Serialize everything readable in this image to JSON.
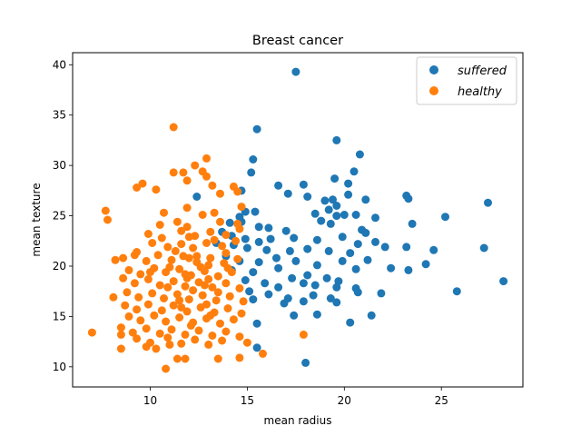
{
  "chart_data": {
    "type": "scatter",
    "title": "Breast cancer",
    "xlabel": "mean radius",
    "ylabel": "mean texture",
    "xlim": [
      6.0,
      29.2
    ],
    "ylim": [
      8.0,
      41.2
    ],
    "xticks": [
      10,
      15,
      20,
      25
    ],
    "yticks": [
      10,
      15,
      20,
      25,
      30,
      35,
      40
    ],
    "grid": false,
    "legend_position": "top-right",
    "series": [
      {
        "name": "suffered",
        "color": "#1f77b4",
        "points": [
          [
            17.5,
            39.3
          ],
          [
            15.5,
            33.6
          ],
          [
            19.6,
            32.5
          ],
          [
            20.8,
            31.1
          ],
          [
            15.3,
            30.6
          ],
          [
            15.2,
            29.3
          ],
          [
            20.5,
            29.4
          ],
          [
            19.5,
            28.7
          ],
          [
            20.2,
            28.2
          ],
          [
            19.0,
            26.5
          ],
          [
            16.6,
            28.0
          ],
          [
            17.1,
            27.2
          ],
          [
            17.9,
            28.1
          ],
          [
            14.7,
            27.5
          ],
          [
            12.4,
            26.9
          ],
          [
            18.1,
            26.9
          ],
          [
            19.4,
            26.6
          ],
          [
            19.6,
            26.0
          ],
          [
            20.2,
            27.1
          ],
          [
            21.1,
            26.6
          ],
          [
            23.2,
            27.0
          ],
          [
            23.3,
            26.7
          ],
          [
            27.4,
            26.3
          ],
          [
            14.9,
            25.4
          ],
          [
            15.4,
            25.4
          ],
          [
            14.6,
            24.9
          ],
          [
            18.5,
            25.2
          ],
          [
            19.2,
            25.6
          ],
          [
            19.6,
            25.0
          ],
          [
            20.0,
            25.1
          ],
          [
            20.6,
            25.1
          ],
          [
            21.6,
            24.8
          ],
          [
            25.2,
            24.9
          ],
          [
            23.5,
            24.2
          ],
          [
            14.1,
            24.3
          ],
          [
            14.7,
            24.4
          ],
          [
            15.6,
            23.9
          ],
          [
            16.1,
            23.8
          ],
          [
            17.0,
            23.5
          ],
          [
            18.8,
            24.5
          ],
          [
            19.3,
            24.2
          ],
          [
            20.9,
            23.6
          ],
          [
            21.1,
            23.3
          ],
          [
            21.6,
            22.4
          ],
          [
            20.7,
            22.2
          ],
          [
            13.7,
            23.4
          ],
          [
            14.2,
            23.0
          ],
          [
            14.9,
            22.7
          ],
          [
            15.6,
            22.4
          ],
          [
            16.2,
            22.7
          ],
          [
            17.4,
            22.8
          ],
          [
            18.6,
            22.6
          ],
          [
            19.9,
            22.9
          ],
          [
            22.1,
            21.9
          ],
          [
            23.2,
            21.9
          ],
          [
            24.6,
            21.6
          ],
          [
            27.2,
            21.8
          ],
          [
            13.4,
            22.3
          ],
          [
            14.3,
            22.1
          ],
          [
            15.0,
            21.8
          ],
          [
            16.0,
            21.6
          ],
          [
            17.2,
            21.5
          ],
          [
            18.1,
            21.7
          ],
          [
            19.2,
            21.5
          ],
          [
            20.3,
            21.3
          ],
          [
            21.2,
            20.6
          ],
          [
            22.4,
            19.8
          ],
          [
            24.2,
            20.2
          ],
          [
            13.9,
            21.0
          ],
          [
            14.6,
            20.5
          ],
          [
            15.6,
            20.4
          ],
          [
            16.5,
            20.8
          ],
          [
            17.5,
            20.5
          ],
          [
            18.6,
            20.1
          ],
          [
            19.9,
            20.5
          ],
          [
            20.6,
            19.7
          ],
          [
            23.3,
            19.6
          ],
          [
            14.2,
            19.6
          ],
          [
            15.3,
            19.4
          ],
          [
            16.6,
            19.8
          ],
          [
            17.3,
            18.8
          ],
          [
            18.1,
            19.1
          ],
          [
            19.1,
            18.8
          ],
          [
            19.7,
            18.5
          ],
          [
            14.9,
            18.6
          ],
          [
            15.9,
            18.3
          ],
          [
            16.6,
            17.9
          ],
          [
            17.9,
            18.3
          ],
          [
            18.5,
            18.1
          ],
          [
            19.6,
            17.9
          ],
          [
            20.6,
            17.8
          ],
          [
            21.9,
            17.3
          ],
          [
            25.8,
            17.5
          ],
          [
            28.2,
            18.5
          ],
          [
            15.1,
            17.5
          ],
          [
            16.1,
            17.2
          ],
          [
            17.1,
            16.8
          ],
          [
            18.4,
            17.1
          ],
          [
            19.3,
            16.8
          ],
          [
            20.7,
            17.4
          ],
          [
            15.3,
            16.7
          ],
          [
            16.9,
            16.3
          ],
          [
            17.9,
            16.5
          ],
          [
            19.6,
            16.4
          ],
          [
            21.4,
            15.1
          ],
          [
            17.4,
            15.1
          ],
          [
            18.6,
            15.2
          ],
          [
            20.3,
            14.4
          ],
          [
            15.5,
            14.3
          ],
          [
            15.5,
            11.9
          ],
          [
            18.0,
            10.4
          ]
        ]
      },
      {
        "name": "healthy",
        "color": "#ff7f0e",
        "points": [
          [
            11.2,
            33.8
          ],
          [
            12.9,
            30.7
          ],
          [
            11.2,
            29.3
          ],
          [
            11.7,
            29.3
          ],
          [
            12.3,
            30.0
          ],
          [
            12.7,
            29.4
          ],
          [
            12.9,
            28.9
          ],
          [
            13.2,
            28.0
          ],
          [
            11.9,
            28.5
          ],
          [
            9.6,
            28.2
          ],
          [
            9.3,
            27.8
          ],
          [
            10.3,
            27.6
          ],
          [
            13.6,
            27.2
          ],
          [
            14.5,
            27.4
          ],
          [
            14.3,
            27.9
          ],
          [
            7.7,
            25.5
          ],
          [
            7.8,
            24.6
          ],
          [
            10.7,
            25.3
          ],
          [
            11.9,
            25.8
          ],
          [
            12.7,
            25.1
          ],
          [
            13.3,
            25.3
          ],
          [
            14.7,
            25.9
          ],
          [
            10.5,
            24.1
          ],
          [
            11.4,
            24.4
          ],
          [
            11.9,
            23.9
          ],
          [
            13.6,
            24.4
          ],
          [
            14.5,
            24.2
          ],
          [
            9.9,
            23.2
          ],
          [
            10.6,
            22.8
          ],
          [
            11.6,
            23.5
          ],
          [
            12.3,
            23.0
          ],
          [
            13.1,
            23.4
          ],
          [
            13.9,
            23.1
          ],
          [
            14.6,
            23.7
          ],
          [
            9.3,
            21.4
          ],
          [
            10.1,
            22.3
          ],
          [
            10.9,
            21.9
          ],
          [
            11.6,
            22.2
          ],
          [
            12.2,
            21.8
          ],
          [
            12.9,
            22.3
          ],
          [
            13.7,
            22.0
          ],
          [
            14.4,
            22.5
          ],
          [
            8.6,
            20.8
          ],
          [
            9.2,
            21.1
          ],
          [
            9.8,
            20.5
          ],
          [
            10.4,
            21.1
          ],
          [
            11.1,
            20.6
          ],
          [
            11.7,
            21.0
          ],
          [
            12.4,
            20.4
          ],
          [
            13.1,
            20.8
          ],
          [
            13.8,
            20.3
          ],
          [
            14.5,
            20.7
          ],
          [
            8.2,
            20.6
          ],
          [
            8.9,
            19.6
          ],
          [
            9.5,
            19.2
          ],
          [
            10.2,
            19.8
          ],
          [
            10.8,
            19.4
          ],
          [
            11.5,
            19.7
          ],
          [
            12.1,
            19.1
          ],
          [
            12.8,
            19.5
          ],
          [
            13.5,
            19.0
          ],
          [
            14.2,
            19.4
          ],
          [
            8.6,
            18.8
          ],
          [
            9.2,
            18.3
          ],
          [
            9.9,
            18.7
          ],
          [
            10.5,
            18.1
          ],
          [
            11.2,
            18.5
          ],
          [
            11.8,
            18.0
          ],
          [
            12.5,
            18.4
          ],
          [
            13.2,
            17.9
          ],
          [
            13.9,
            18.3
          ],
          [
            14.6,
            17.8
          ],
          [
            8.8,
            17.4
          ],
          [
            9.4,
            16.9
          ],
          [
            10.1,
            17.3
          ],
          [
            10.7,
            16.8
          ],
          [
            11.4,
            17.2
          ],
          [
            12.0,
            16.7
          ],
          [
            12.7,
            17.1
          ],
          [
            13.4,
            16.6
          ],
          [
            14.1,
            17.0
          ],
          [
            14.8,
            16.5
          ],
          [
            8.1,
            16.9
          ],
          [
            8.7,
            16.1
          ],
          [
            9.3,
            15.7
          ],
          [
            9.9,
            16.2
          ],
          [
            10.6,
            15.6
          ],
          [
            11.2,
            16.1
          ],
          [
            11.9,
            15.5
          ],
          [
            12.6,
            15.9
          ],
          [
            13.3,
            15.4
          ],
          [
            14.0,
            15.8
          ],
          [
            14.7,
            15.3
          ],
          [
            8.9,
            15.0
          ],
          [
            9.5,
            14.6
          ],
          [
            10.2,
            15.1
          ],
          [
            10.8,
            14.5
          ],
          [
            11.5,
            14.9
          ],
          [
            12.2,
            14.4
          ],
          [
            12.9,
            14.8
          ],
          [
            13.6,
            14.3
          ],
          [
            14.3,
            14.7
          ],
          [
            8.5,
            13.9
          ],
          [
            9.1,
            13.4
          ],
          [
            9.8,
            13.8
          ],
          [
            10.5,
            13.3
          ],
          [
            11.1,
            13.7
          ],
          [
            11.8,
            13.2
          ],
          [
            12.5,
            13.6
          ],
          [
            13.2,
            13.1
          ],
          [
            13.9,
            13.5
          ],
          [
            14.6,
            13.0
          ],
          [
            7.0,
            13.4
          ],
          [
            8.5,
            13.2
          ],
          [
            9.3,
            12.8
          ],
          [
            10.0,
            12.4
          ],
          [
            10.9,
            12.9
          ],
          [
            11.6,
            12.3
          ],
          [
            12.3,
            12.7
          ],
          [
            13.0,
            12.2
          ],
          [
            13.7,
            12.6
          ],
          [
            15.0,
            12.4
          ],
          [
            9.8,
            12.0
          ],
          [
            10.3,
            11.8
          ],
          [
            11.0,
            12.2
          ],
          [
            8.5,
            11.8
          ],
          [
            11.4,
            10.8
          ],
          [
            11.8,
            10.8
          ],
          [
            13.5,
            10.8
          ],
          [
            14.6,
            10.9
          ],
          [
            15.8,
            11.3
          ],
          [
            10.8,
            9.8
          ],
          [
            17.9,
            13.2
          ],
          [
            12.0,
            22.9
          ],
          [
            12.4,
            21.0
          ],
          [
            11.8,
            19.2
          ],
          [
            13.0,
            18.7
          ],
          [
            12.2,
            17.6
          ],
          [
            13.5,
            17.4
          ],
          [
            11.6,
            15.9
          ],
          [
            12.9,
            16.2
          ],
          [
            11.0,
            19.9
          ],
          [
            12.6,
            19.9
          ],
          [
            13.9,
            21.3
          ],
          [
            10.9,
            17.9
          ],
          [
            12.1,
            14.1
          ],
          [
            13.0,
            20.1
          ],
          [
            12.0,
            20.8
          ],
          [
            14.0,
            19.8
          ],
          [
            11.3,
            21.5
          ],
          [
            13.3,
            22.6
          ],
          [
            10.0,
            19.4
          ],
          [
            11.5,
            16.6
          ],
          [
            13.1,
            15.1
          ],
          [
            12.8,
            18.1
          ],
          [
            11.9,
            18.8
          ]
        ]
      }
    ]
  }
}
